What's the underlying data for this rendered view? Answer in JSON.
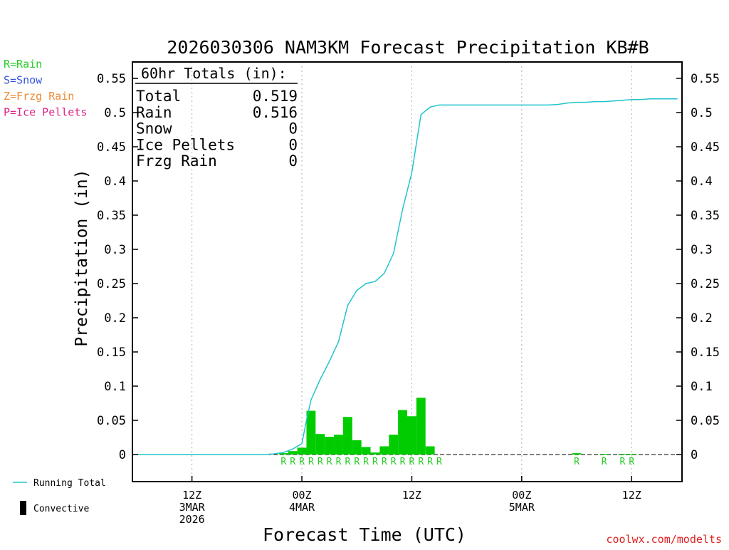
{
  "chart_data": {
    "type": "bar",
    "title": "2026030306 NAM3KM Forecast Precipitation KB#B",
    "xlabel": "Forecast Time (UTC)",
    "ylabel": "Precipitation (in)",
    "ylim": [
      -0.04,
      0.57
    ],
    "yticks": [
      0,
      0.05,
      0.1,
      0.15,
      0.2,
      0.25,
      0.3,
      0.35,
      0.4,
      0.45,
      0.5,
      0.55
    ],
    "ytick_labels": [
      "0",
      "0.05",
      "0.1",
      "0.15",
      "0.2",
      "0.25",
      "0.3",
      "0.35",
      "0.4",
      "0.45",
      "0.5",
      "0.55"
    ],
    "x_units": "hours since 2026-03-03 06Z",
    "xlim": [
      -0.5,
      59.5
    ],
    "xticks": [
      {
        "hour": 6,
        "lines": [
          "12Z",
          "3MAR",
          "2026"
        ]
      },
      {
        "hour": 18,
        "lines": [
          "00Z",
          "4MAR"
        ]
      },
      {
        "hour": 30,
        "lines": [
          "12Z"
        ]
      },
      {
        "hour": 42,
        "lines": [
          "00Z",
          "5MAR"
        ]
      },
      {
        "hour": 54,
        "lines": [
          "12Z"
        ]
      }
    ],
    "legend": {
      "placement": "left",
      "entries": [
        {
          "label": "R=Rain",
          "color": "#22cc22"
        },
        {
          "label": "S=Snow",
          "color": "#3355dd"
        },
        {
          "label": "Z=Frzg Rain",
          "color": "#ee8833"
        },
        {
          "label": "P=Ice Pellets",
          "color": "#dd2288"
        }
      ],
      "running_total_label": "Running Total",
      "convective_label": "Convective"
    },
    "totals_box": {
      "heading": "60hr Totals (in):",
      "rows": [
        {
          "label": "Total",
          "value": "0.519"
        },
        {
          "label": "Rain",
          "value": "0.516"
        },
        {
          "label": "Snow",
          "value": "0"
        },
        {
          "label": "Ice Pellets",
          "value": "0"
        },
        {
          "label": "Frzg Rain",
          "value": "0"
        }
      ]
    },
    "colors": {
      "bars": "#00cc00",
      "running_total": "#22c4cc",
      "ptype_marker": "#22cc22",
      "grid": "#aaaaaa",
      "watermark": "#dd2222"
    },
    "series": [
      {
        "name": "Hourly precipitation",
        "x": [
          16,
          17,
          18,
          19,
          20,
          21,
          22,
          23,
          24,
          25,
          26,
          27,
          28,
          29,
          30,
          31,
          32,
          48,
          51,
          53,
          54
        ],
        "values": [
          0.002,
          0.005,
          0.01,
          0.064,
          0.03,
          0.026,
          0.029,
          0.055,
          0.021,
          0.011,
          0.003,
          0.012,
          0.029,
          0.065,
          0.056,
          0.083,
          0.012,
          0.002,
          0.001,
          0.001,
          0.001
        ]
      },
      {
        "name": "Running Total",
        "x": [
          0,
          14,
          15,
          16,
          17,
          18,
          18.5,
          19,
          20,
          21,
          22,
          23,
          24,
          25,
          26,
          27,
          28,
          29,
          30,
          31,
          32,
          33,
          34,
          36,
          38,
          40,
          42,
          44,
          45,
          46,
          47,
          48,
          49,
          50,
          51,
          52,
          53,
          54,
          55,
          56,
          57,
          58,
          59
        ],
        "values": [
          0,
          0,
          0.001,
          0.003,
          0.008,
          0.016,
          0.05,
          0.08,
          0.11,
          0.136,
          0.165,
          0.218,
          0.24,
          0.25,
          0.253,
          0.265,
          0.294,
          0.359,
          0.412,
          0.497,
          0.508,
          0.511,
          0.511,
          0.511,
          0.511,
          0.511,
          0.511,
          0.511,
          0.511,
          0.512,
          0.514,
          0.515,
          0.515,
          0.516,
          0.516,
          0.517,
          0.518,
          0.519,
          0.519,
          0.52,
          0.52,
          0.52,
          0.52
        ]
      }
    ],
    "ptype_markers": {
      "symbol": "R",
      "x": [
        16,
        17,
        18,
        19,
        20,
        21,
        22,
        23,
        24,
        25,
        26,
        27,
        28,
        29,
        30,
        31,
        32,
        33,
        48,
        51,
        53,
        54
      ]
    },
    "watermark": "coolwx.com/modelts"
  }
}
